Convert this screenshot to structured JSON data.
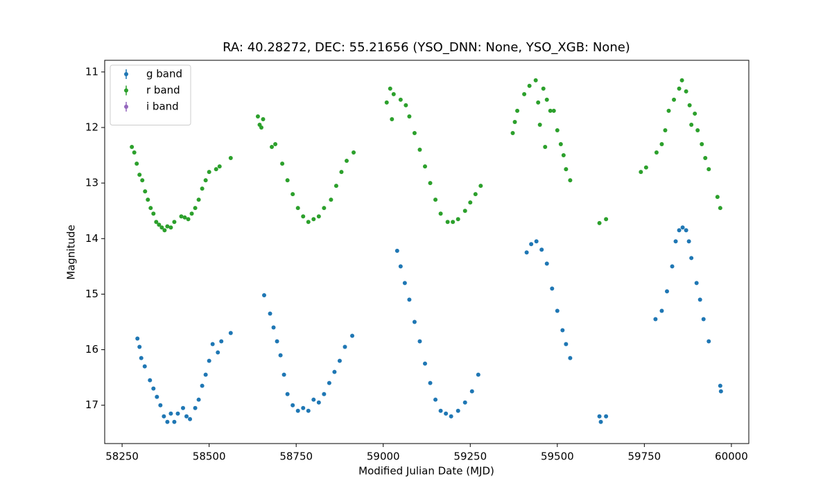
{
  "chart_data": {
    "type": "scatter",
    "title": "RA: 40.28272, DEC: 55.21656 (YSO_DNN: None, YSO_XGB: None)",
    "x_label": "Modified Julian Date (MJD)",
    "y_label": "Magnitude",
    "xlim": [
      58200,
      60050
    ],
    "ylim": [
      17.69,
      10.79
    ],
    "xticks": [
      58250,
      58500,
      58750,
      59000,
      59250,
      59500,
      59750,
      60000
    ],
    "yticks": [
      11,
      12,
      13,
      14,
      15,
      16,
      17
    ],
    "legend": "upper left",
    "series": [
      {
        "name": "g band",
        "color": "#1f77b4",
        "x": [
          58294,
          58300,
          58305,
          58315,
          58330,
          58340,
          58350,
          58360,
          58370,
          58380,
          58390,
          58400,
          58410,
          58425,
          58435,
          58445,
          58460,
          58470,
          58480,
          58490,
          58500,
          58510,
          58525,
          58535,
          58562,
          58658,
          58675,
          58685,
          58695,
          58705,
          58715,
          58725,
          58740,
          58755,
          58770,
          58785,
          58800,
          58815,
          58830,
          58845,
          58860,
          58875,
          58890,
          58911,
          59040,
          59050,
          59062,
          59075,
          59090,
          59105,
          59120,
          59135,
          59150,
          59165,
          59180,
          59195,
          59215,
          59235,
          59255,
          59273,
          59412,
          59425,
          59440,
          59455,
          59470,
          59485,
          59500,
          59515,
          59525,
          59537,
          59621,
          59625,
          59640,
          59782,
          59800,
          59815,
          59830,
          59840,
          59850,
          59860,
          59870,
          59878,
          59885,
          59900,
          59910,
          59920,
          59935,
          59968,
          59970
        ],
        "values": [
          15.8,
          15.95,
          16.15,
          16.3,
          16.55,
          16.7,
          16.85,
          17.0,
          17.2,
          17.3,
          17.15,
          17.3,
          17.15,
          17.05,
          17.2,
          17.25,
          17.05,
          16.9,
          16.65,
          16.45,
          16.2,
          15.9,
          16.05,
          15.85,
          15.7,
          15.02,
          15.35,
          15.6,
          15.85,
          16.1,
          16.45,
          16.8,
          17.0,
          17.1,
          17.05,
          17.1,
          16.9,
          16.95,
          16.8,
          16.6,
          16.4,
          16.2,
          15.95,
          15.75,
          14.22,
          14.5,
          14.8,
          15.1,
          15.5,
          15.85,
          16.25,
          16.6,
          16.9,
          17.1,
          17.15,
          17.2,
          17.1,
          16.95,
          16.75,
          16.45,
          14.25,
          14.1,
          14.05,
          14.2,
          14.45,
          14.9,
          15.3,
          15.65,
          15.9,
          16.15,
          17.2,
          17.3,
          17.2,
          15.45,
          15.3,
          14.95,
          14.5,
          14.05,
          13.85,
          13.8,
          13.85,
          14.05,
          14.35,
          14.8,
          15.1,
          15.45,
          15.85,
          16.65,
          16.75
        ]
      },
      {
        "name": "r band",
        "color": "#2ca02c",
        "x": [
          58278,
          58285,
          58292,
          58300,
          58308,
          58316,
          58324,
          58332,
          58340,
          58348,
          58356,
          58364,
          58372,
          58380,
          58390,
          58400,
          58420,
          58430,
          58440,
          58450,
          58460,
          58470,
          58480,
          58490,
          58500,
          58520,
          58530,
          58562,
          58640,
          58645,
          58650,
          58655,
          58680,
          58690,
          58710,
          58725,
          58740,
          58755,
          58770,
          58785,
          58800,
          58815,
          58830,
          58850,
          58865,
          58880,
          58895,
          58915,
          59010,
          59020,
          59025,
          59030,
          59050,
          59065,
          59075,
          59090,
          59105,
          59120,
          59135,
          59150,
          59165,
          59185,
          59200,
          59215,
          59235,
          59250,
          59265,
          59280,
          59372,
          59378,
          59385,
          59405,
          59420,
          59438,
          59445,
          59450,
          59460,
          59465,
          59470,
          59480,
          59490,
          59500,
          59510,
          59518,
          59525,
          59537,
          59621,
          59640,
          59740,
          59755,
          59785,
          59800,
          59810,
          59820,
          59835,
          59850,
          59858,
          59870,
          59880,
          59885,
          59895,
          59903,
          59915,
          59925,
          59935,
          59960,
          59968
        ],
        "values": [
          12.35,
          12.45,
          12.65,
          12.85,
          12.95,
          13.15,
          13.3,
          13.45,
          13.55,
          13.7,
          13.75,
          13.8,
          13.85,
          13.78,
          13.8,
          13.7,
          13.6,
          13.62,
          13.65,
          13.55,
          13.45,
          13.3,
          13.1,
          12.95,
          12.8,
          12.75,
          12.7,
          12.55,
          11.8,
          11.95,
          12.0,
          11.85,
          12.35,
          12.3,
          12.65,
          12.95,
          13.2,
          13.45,
          13.6,
          13.7,
          13.65,
          13.6,
          13.45,
          13.3,
          13.05,
          12.8,
          12.6,
          12.45,
          11.55,
          11.3,
          11.85,
          11.4,
          11.5,
          11.6,
          11.8,
          12.1,
          12.4,
          12.7,
          13.0,
          13.3,
          13.55,
          13.7,
          13.7,
          13.65,
          13.5,
          13.35,
          13.2,
          13.05,
          12.1,
          11.9,
          11.7,
          11.4,
          11.25,
          11.15,
          11.55,
          11.95,
          11.3,
          12.35,
          11.5,
          11.7,
          11.7,
          12.05,
          12.3,
          12.5,
          12.75,
          12.95,
          13.72,
          13.65,
          12.8,
          12.72,
          12.45,
          12.3,
          12.05,
          11.7,
          11.5,
          11.3,
          11.15,
          11.35,
          11.6,
          11.95,
          11.75,
          12.05,
          12.3,
          12.55,
          12.75,
          13.25,
          13.45
        ]
      },
      {
        "name": "i band",
        "color": "#9467bd",
        "x": [],
        "values": []
      }
    ]
  }
}
